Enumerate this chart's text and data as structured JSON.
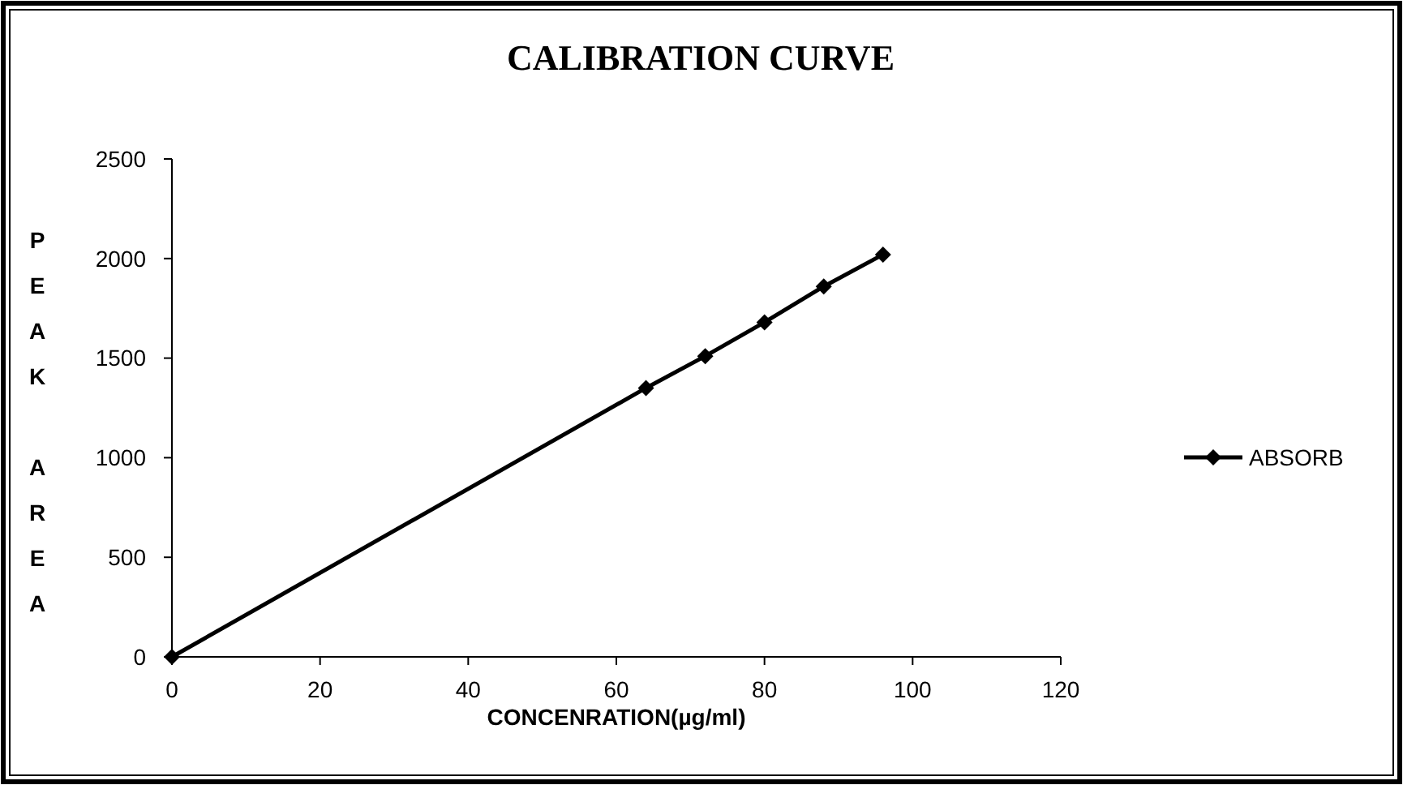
{
  "chart_data": {
    "type": "line",
    "title": "CALIBRATION CURVE",
    "xlabel": "CONCENRATION(µg/ml)",
    "ylabel": "PEAK  AREA",
    "x": [
      0,
      64,
      72,
      80,
      88,
      96
    ],
    "series": [
      {
        "name": "ABSORB",
        "color": "#000000",
        "values": [
          0,
          1350,
          1510,
          1680,
          1860,
          2020
        ]
      }
    ],
    "xlim": [
      0,
      120
    ],
    "xticks": [
      0,
      20,
      40,
      60,
      80,
      100,
      120
    ],
    "ylim": [
      0,
      2500
    ],
    "yticks": [
      0,
      500,
      1000,
      1500,
      2000,
      2500
    ],
    "grid": false,
    "legend": "right",
    "marker": "diamond",
    "line_style": "solid"
  }
}
